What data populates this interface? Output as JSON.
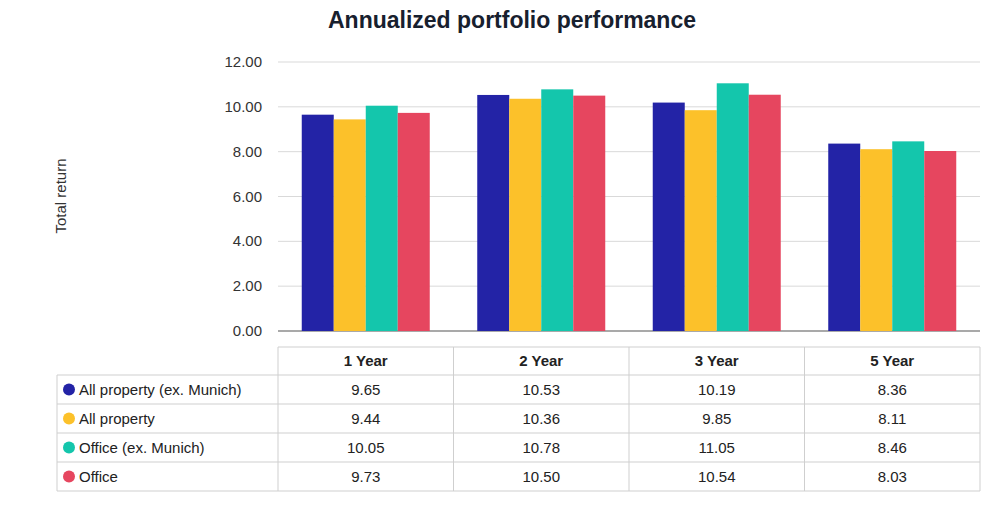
{
  "chart_data": {
    "type": "bar",
    "title": "Annualized portfolio performance",
    "y_label": "Total return",
    "categories": [
      "1 Year",
      "2 Year",
      "3 Year",
      "5 Year"
    ],
    "series": [
      {
        "name": "All property (ex. Munich)",
        "color": "#2323a6",
        "values": [
          9.65,
          10.53,
          10.19,
          8.36
        ]
      },
      {
        "name": "All property",
        "color": "#fcc12a",
        "values": [
          9.44,
          10.36,
          9.85,
          8.11
        ]
      },
      {
        "name": "Office (ex. Munich)",
        "color": "#14c6ac",
        "values": [
          10.05,
          10.78,
          11.05,
          8.46
        ]
      },
      {
        "name": "Office",
        "color": "#e6465f",
        "values": [
          9.73,
          10.5,
          10.54,
          8.03
        ],
        "value_labels": [
          "9.73",
          "10.50",
          "10.54",
          "8.03"
        ]
      }
    ],
    "ylim": [
      0,
      12
    ],
    "yticks": [
      {
        "value": 0,
        "label": "0.00"
      },
      {
        "value": 2,
        "label": "2.00"
      },
      {
        "value": 4,
        "label": "4.00"
      },
      {
        "value": 6,
        "label": "6.00"
      },
      {
        "value": 8,
        "label": "8.00"
      },
      {
        "value": 10,
        "label": "10.00"
      },
      {
        "value": 12,
        "label": "12.00"
      }
    ],
    "grid": true
  }
}
